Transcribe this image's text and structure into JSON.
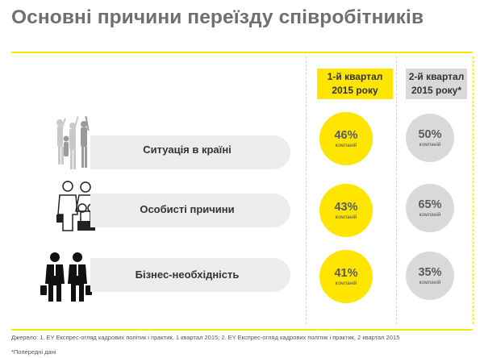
{
  "title": "Основні причини переїзду співробітників",
  "columns": [
    {
      "label_line1": "1-й квартал",
      "label_line2": "2015 року"
    },
    {
      "label_line1": "2-й квартал",
      "label_line2": "2015 року*"
    }
  ],
  "unit_label": "компаній",
  "rows": [
    {
      "label": "Ситуація в країні",
      "icon": "protest-crowd-icon",
      "q1": "46%",
      "q2": "50%"
    },
    {
      "label": "Особисті причини",
      "icon": "family-icon",
      "q1": "43%",
      "q2": "65%"
    },
    {
      "label": "Бізнес-необхідність",
      "icon": "business-people-icon",
      "q1": "41%",
      "q2": "35%"
    }
  ],
  "footer": {
    "source": "Джерело: 1. EY Експрес-огляд кадрових політик і практик, 1 квартал 2015; 2. EY Експрес-огляд кадрових політик і практик, 2 квартал 2015",
    "note": "*Попередні дані"
  },
  "colors": {
    "accent": "#ffe500",
    "grey_circle": "#d9d9d9",
    "row_bar": "#ececec"
  },
  "chart_data": {
    "type": "table",
    "title": "Основні причини переїзду співробітників",
    "categories": [
      "Ситуація в країні",
      "Особисті причини",
      "Бізнес-необхідність"
    ],
    "series": [
      {
        "name": "1-й квартал 2015 року",
        "values": [
          46,
          43,
          41
        ]
      },
      {
        "name": "2-й квартал 2015 року*",
        "values": [
          50,
          65,
          35
        ]
      }
    ],
    "unit": "% компаній"
  }
}
